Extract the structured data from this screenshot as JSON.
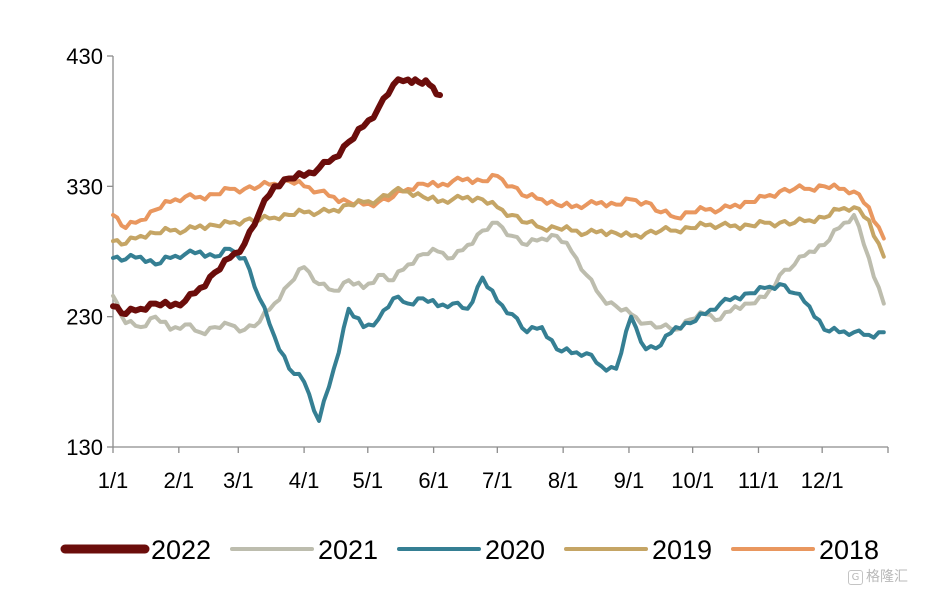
{
  "chart_data": {
    "type": "line",
    "title": "",
    "xlabel": "",
    "ylabel": "",
    "ylim": [
      130,
      430
    ],
    "yticks": [
      130,
      230,
      330,
      430
    ],
    "xticks": [
      "1/1",
      "2/1",
      "3/1",
      "4/1",
      "5/1",
      "6/1",
      "7/1",
      "8/1",
      "9/1",
      "10/1",
      "11/1",
      "12/1"
    ],
    "grid": false,
    "legend_position": "bottom",
    "series": [
      {
        "name": "2022",
        "color": "#6b0d0b",
        "x": [
          1,
          7,
          14,
          21,
          28,
          35,
          42,
          49,
          56,
          63,
          70,
          77,
          84,
          91,
          98,
          105,
          112,
          119,
          126,
          133,
          140,
          145,
          150,
          155
        ],
        "y": [
          238,
          232,
          236,
          240,
          238,
          242,
          252,
          264,
          275,
          286,
          310,
          330,
          336,
          338,
          344,
          352,
          364,
          376,
          390,
          408,
          412,
          410,
          408,
          400
        ]
      },
      {
        "name": "2021",
        "color": "#bdbdae",
        "x": [
          1,
          7,
          14,
          21,
          28,
          35,
          42,
          49,
          56,
          63,
          70,
          77,
          84,
          91,
          98,
          105,
          112,
          119,
          126,
          133,
          140,
          147,
          154,
          161,
          168,
          175,
          182,
          189,
          196,
          203,
          210,
          217,
          224,
          231,
          238,
          245,
          252,
          259,
          266,
          273,
          280,
          287,
          294,
          301,
          308,
          315,
          322,
          329,
          336,
          343,
          350,
          357,
          364
        ],
        "y": [
          246,
          225,
          222,
          230,
          220,
          224,
          218,
          222,
          224,
          220,
          226,
          240,
          255,
          268,
          255,
          250,
          258,
          252,
          262,
          258,
          270,
          278,
          280,
          275,
          285,
          296,
          302,
          292,
          285,
          290,
          292,
          280,
          262,
          245,
          238,
          232,
          225,
          222,
          220,
          228,
          232,
          228,
          238,
          240,
          245,
          262,
          270,
          280,
          285,
          298,
          308,
          275,
          240
        ]
      },
      {
        "name": "2020",
        "color": "#357f93",
        "x": [
          1,
          7,
          14,
          21,
          28,
          35,
          42,
          49,
          56,
          63,
          70,
          77,
          84,
          91,
          98,
          105,
          112,
          119,
          126,
          133,
          140,
          147,
          154,
          161,
          168,
          175,
          182,
          189,
          196,
          203,
          210,
          217,
          224,
          231,
          238,
          245,
          252,
          259,
          266,
          273,
          280,
          287,
          294,
          301,
          308,
          315,
          322,
          329,
          336,
          343,
          350,
          357,
          364
        ],
        "y": [
          275,
          274,
          276,
          270,
          275,
          278,
          280,
          276,
          282,
          275,
          244,
          215,
          190,
          180,
          150,
          190,
          236,
          222,
          228,
          244,
          240,
          244,
          238,
          240,
          236,
          260,
          242,
          232,
          218,
          222,
          205,
          202,
          202,
          192,
          190,
          230,
          205,
          208,
          222,
          225,
          232,
          240,
          245,
          248,
          252,
          255,
          248,
          238,
          220,
          218,
          218,
          216,
          218
        ]
      },
      {
        "name": "2019",
        "color": "#c5a565",
        "x": [
          1,
          7,
          14,
          21,
          28,
          35,
          42,
          49,
          56,
          63,
          70,
          77,
          84,
          91,
          98,
          105,
          112,
          119,
          126,
          133,
          140,
          147,
          154,
          161,
          168,
          175,
          182,
          189,
          196,
          203,
          210,
          217,
          224,
          231,
          238,
          245,
          252,
          259,
          266,
          273,
          280,
          287,
          294,
          301,
          308,
          315,
          322,
          329,
          336,
          343,
          350,
          357,
          364
        ],
        "y": [
          288,
          286,
          292,
          294,
          296,
          296,
          300,
          300,
          302,
          304,
          304,
          306,
          308,
          310,
          310,
          312,
          316,
          318,
          320,
          326,
          326,
          322,
          318,
          320,
          322,
          320,
          314,
          308,
          302,
          298,
          298,
          296,
          294,
          296,
          294,
          292,
          294,
          296,
          296,
          298,
          300,
          300,
          300,
          300,
          302,
          302,
          302,
          304,
          306,
          312,
          314,
          304,
          276
        ]
      },
      {
        "name": "2018",
        "color": "#e9975f",
        "x": [
          1,
          7,
          14,
          21,
          28,
          35,
          42,
          49,
          56,
          63,
          70,
          77,
          84,
          91,
          98,
          105,
          112,
          119,
          126,
          133,
          140,
          147,
          154,
          161,
          168,
          175,
          182,
          189,
          196,
          203,
          210,
          217,
          224,
          231,
          238,
          245,
          252,
          259,
          266,
          273,
          280,
          287,
          294,
          301,
          308,
          315,
          322,
          329,
          336,
          343,
          350,
          357,
          364
        ],
        "y": [
          308,
          298,
          304,
          312,
          318,
          322,
          322,
          324,
          328,
          328,
          330,
          332,
          334,
          330,
          326,
          322,
          318,
          316,
          318,
          322,
          328,
          332,
          330,
          334,
          336,
          334,
          338,
          330,
          322,
          320,
          316,
          314,
          316,
          318,
          316,
          320,
          318,
          310,
          306,
          310,
          312,
          312,
          316,
          318,
          322,
          326,
          328,
          328,
          330,
          328,
          326,
          314,
          290
        ]
      }
    ]
  }
}
